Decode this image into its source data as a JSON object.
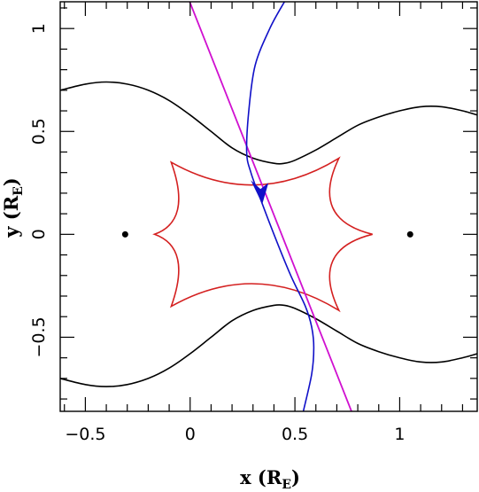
{
  "chart_data": {
    "type": "line",
    "xlabel": "x (R",
    "xlabel_sub": "E",
    "xlabel_close": ")",
    "ylabel": "y (R",
    "ylabel_sub": "E",
    "ylabel_close": ")",
    "xlim": [
      -0.62,
      1.37
    ],
    "ylim": [
      -0.86,
      1.13
    ],
    "xticks": [
      -0.5,
      0,
      0.5,
      1
    ],
    "xtick_labels": [
      "−0.5",
      "0",
      "0.5",
      "1"
    ],
    "yticks": [
      -0.5,
      0,
      0.5,
      1
    ],
    "ytick_labels": [
      "−0.5",
      "0",
      "0.5",
      "1"
    ],
    "grid": false,
    "colors": {
      "critical_curve": "#000000",
      "caustic": "#d42020",
      "source_trajectory": "#d010d0",
      "image_track": "#1010c8",
      "lens": "#000000"
    },
    "lens_masses": [
      {
        "x": -0.31,
        "y": 0
      },
      {
        "x": 1.05,
        "y": 0
      }
    ],
    "caustic": {
      "cusps": [
        {
          "x": -0.17,
          "y": 0
        },
        {
          "x": -0.09,
          "y": 0.35
        },
        {
          "x": 0.71,
          "y": 0.37
        },
        {
          "x": 0.87,
          "y": 0
        },
        {
          "x": 0.71,
          "y": -0.37
        },
        {
          "x": -0.09,
          "y": -0.35
        }
      ],
      "fold_midpoints": [
        {
          "x": -0.06,
          "y": 0.12
        },
        {
          "x": 0.31,
          "y": 0.24
        },
        {
          "x": 0.68,
          "y": 0.13
        },
        {
          "x": 0.68,
          "y": -0.13
        },
        {
          "x": 0.31,
          "y": -0.24
        },
        {
          "x": -0.06,
          "y": -0.12
        }
      ]
    },
    "critical_curve_upper": [
      [
        -0.62,
        0.7
      ],
      [
        -0.5,
        0.73
      ],
      [
        -0.4,
        0.74
      ],
      [
        -0.3,
        0.73
      ],
      [
        -0.2,
        0.7
      ],
      [
        -0.1,
        0.65
      ],
      [
        0,
        0.58
      ],
      [
        0.1,
        0.5
      ],
      [
        0.2,
        0.42
      ],
      [
        0.3,
        0.37
      ],
      [
        0.4,
        0.345
      ],
      [
        0.45,
        0.345
      ],
      [
        0.5,
        0.36
      ],
      [
        0.6,
        0.41
      ],
      [
        0.7,
        0.47
      ],
      [
        0.8,
        0.53
      ],
      [
        0.9,
        0.57
      ],
      [
        1.0,
        0.6
      ],
      [
        1.1,
        0.62
      ],
      [
        1.2,
        0.62
      ],
      [
        1.3,
        0.6
      ],
      [
        1.37,
        0.58
      ]
    ],
    "critical_curve_lower": [
      [
        -0.62,
        -0.7
      ],
      [
        -0.5,
        -0.73
      ],
      [
        -0.4,
        -0.74
      ],
      [
        -0.3,
        -0.73
      ],
      [
        -0.2,
        -0.7
      ],
      [
        -0.1,
        -0.65
      ],
      [
        0,
        -0.58
      ],
      [
        0.1,
        -0.5
      ],
      [
        0.2,
        -0.42
      ],
      [
        0.3,
        -0.37
      ],
      [
        0.4,
        -0.345
      ],
      [
        0.45,
        -0.345
      ],
      [
        0.5,
        -0.36
      ],
      [
        0.6,
        -0.41
      ],
      [
        0.7,
        -0.47
      ],
      [
        0.8,
        -0.53
      ],
      [
        0.9,
        -0.57
      ],
      [
        1.0,
        -0.6
      ],
      [
        1.1,
        -0.62
      ],
      [
        1.2,
        -0.62
      ],
      [
        1.3,
        -0.6
      ],
      [
        1.37,
        -0.58
      ]
    ],
    "source_trajectory": [
      [
        -0.002,
        1.13
      ],
      [
        0.77,
        -0.86
      ]
    ],
    "image_track": [
      [
        0.45,
        1.13
      ],
      [
        0.38,
        1.0
      ],
      [
        0.31,
        0.82
      ],
      [
        0.28,
        0.6
      ],
      [
        0.27,
        0.4
      ],
      [
        0.29,
        0.3
      ],
      [
        0.34,
        0.16
      ],
      [
        0.4,
        0.0
      ],
      [
        0.48,
        -0.2
      ],
      [
        0.55,
        -0.35
      ],
      [
        0.58,
        -0.45
      ],
      [
        0.59,
        -0.55
      ],
      [
        0.58,
        -0.68
      ],
      [
        0.54,
        -0.86
      ]
    ],
    "arrow": {
      "x": 0.34,
      "y": 0.19,
      "direction": "down-left"
    }
  }
}
